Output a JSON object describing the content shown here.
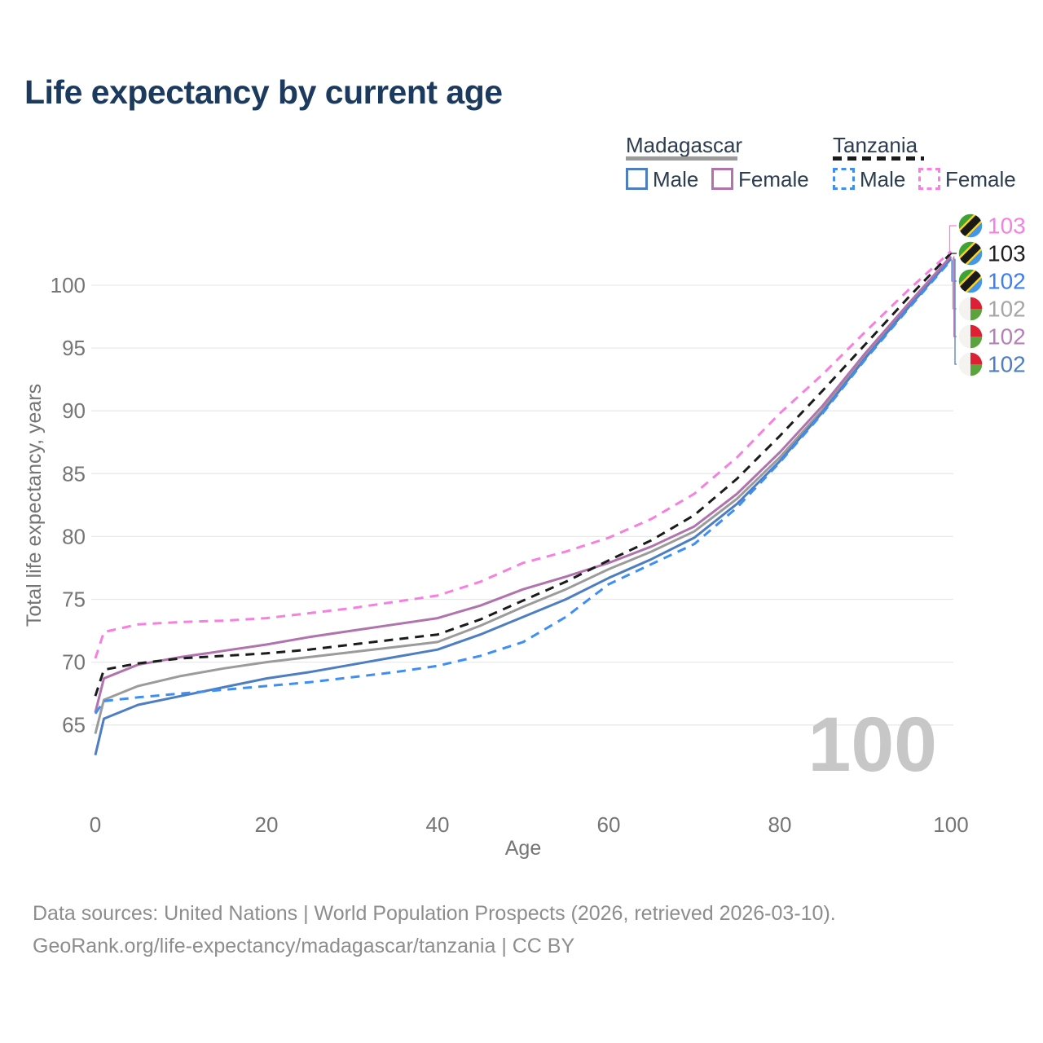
{
  "title": "Life expectancy by current age",
  "legend": {
    "groups": [
      {
        "label": "Madagascar",
        "line_style": "solid",
        "line_color": "#9b9b9b",
        "items": [
          {
            "label": "Male",
            "color": "#4d7ec2",
            "style": "solid"
          },
          {
            "label": "Female",
            "color": "#b173ae",
            "style": "solid"
          }
        ]
      },
      {
        "label": "Tanzania",
        "line_style": "dashed",
        "line_color": "#1b1b1b",
        "items": [
          {
            "label": "Male",
            "color": "#3e8ef7",
            "style": "dashed"
          },
          {
            "label": "Female",
            "color": "#f77fe0",
            "style": "dashed"
          }
        ]
      }
    ]
  },
  "chart_data": {
    "type": "line",
    "title": "Life expectancy by current age",
    "xlabel": "Age",
    "ylabel": "Total life expectancy, years",
    "xlim": [
      0,
      100
    ],
    "ylim": [
      61.5,
      104
    ],
    "x_ticks": [
      0,
      20,
      40,
      60,
      80,
      100
    ],
    "y_ticks": [
      65,
      70,
      75,
      80,
      85,
      90,
      95,
      100
    ],
    "grid": "horizontal-only",
    "legend_position": "top-right",
    "watermark": "100",
    "x": [
      0,
      1,
      5,
      10,
      15,
      20,
      25,
      30,
      35,
      40,
      45,
      50,
      55,
      60,
      65,
      70,
      75,
      80,
      85,
      90,
      95,
      100
    ],
    "series": [
      {
        "name": "Madagascar Both sexes",
        "country": "Madagascar",
        "sex": "Both",
        "color": "#9b9b9b",
        "dash": "solid",
        "values": [
          64.3,
          67.0,
          68.1,
          68.9,
          69.5,
          70.0,
          70.4,
          70.8,
          71.2,
          71.6,
          72.9,
          74.4,
          75.8,
          77.4,
          78.8,
          80.4,
          83.0,
          86.3,
          90.1,
          94.4,
          98.3,
          102.2
        ]
      },
      {
        "name": "Madagascar Male",
        "country": "Madagascar",
        "sex": "Male",
        "color": "#4d7ec2",
        "dash": "solid",
        "values": [
          62.6,
          65.5,
          66.6,
          67.3,
          68.0,
          68.7,
          69.2,
          69.8,
          70.4,
          71.0,
          72.2,
          73.6,
          75.0,
          76.7,
          78.2,
          79.9,
          82.6,
          86.0,
          89.9,
          94.2,
          98.2,
          102.1
        ]
      },
      {
        "name": "Madagascar Female",
        "country": "Madagascar",
        "sex": "Female",
        "color": "#b173ae",
        "dash": "solid",
        "values": [
          66.0,
          68.7,
          69.8,
          70.4,
          70.9,
          71.4,
          72.0,
          72.5,
          73.0,
          73.5,
          74.5,
          75.8,
          76.8,
          77.9,
          79.2,
          80.8,
          83.4,
          86.7,
          90.4,
          94.6,
          98.5,
          102.3
        ]
      },
      {
        "name": "Tanzania Male",
        "country": "Tanzania",
        "sex": "Male",
        "color": "#3e8ef7",
        "dash": "dashed",
        "values": [
          65.9,
          66.9,
          67.2,
          67.5,
          67.8,
          68.1,
          68.4,
          68.8,
          69.2,
          69.7,
          70.5,
          71.6,
          73.6,
          76.2,
          77.8,
          79.4,
          82.3,
          85.9,
          89.8,
          94.1,
          98.1,
          102.0
        ]
      },
      {
        "name": "Tanzania Both sexes",
        "country": "Tanzania",
        "sex": "Both",
        "color": "#1b1b1b",
        "dash": "dashed",
        "values": [
          67.3,
          69.4,
          69.9,
          70.3,
          70.5,
          70.7,
          71.0,
          71.4,
          71.8,
          72.2,
          73.4,
          74.9,
          76.4,
          78.1,
          79.7,
          81.7,
          84.6,
          88.0,
          91.6,
          95.3,
          99.0,
          102.55
        ]
      },
      {
        "name": "Tanzania Female",
        "country": "Tanzania",
        "sex": "Female",
        "color": "#f77fe0",
        "dash": "dashed",
        "values": [
          70.3,
          72.4,
          73.0,
          73.2,
          73.3,
          73.5,
          73.9,
          74.3,
          74.8,
          75.3,
          76.4,
          77.9,
          78.8,
          79.9,
          81.4,
          83.4,
          86.3,
          89.8,
          92.9,
          96.3,
          99.6,
          102.7
        ]
      }
    ],
    "end_labels": [
      {
        "series": "Tanzania Female",
        "flag": "tanzania",
        "value": "103",
        "color": "#f77fe0"
      },
      {
        "series": "Tanzania Both sexes",
        "flag": "tanzania",
        "value": "103",
        "color": "#1f1f1f"
      },
      {
        "series": "Tanzania Male",
        "flag": "tanzania",
        "value": "102",
        "color": "#3e7ef0"
      },
      {
        "series": "Madagascar Both sexes",
        "flag": "madagascar",
        "value": "102",
        "color": "#a6a6a6"
      },
      {
        "series": "Madagascar Female",
        "flag": "madagascar",
        "value": "102",
        "color": "#b77fb7"
      },
      {
        "series": "Madagascar Male",
        "flag": "madagascar",
        "value": "102",
        "color": "#4d7ec2"
      }
    ]
  },
  "footer": {
    "line1": "Data sources: United Nations | World Population Prospects (2026, retrieved 2026-03-10).",
    "line2": "GeoRank.org/life-expectancy/madagascar/tanzania | CC BY"
  }
}
